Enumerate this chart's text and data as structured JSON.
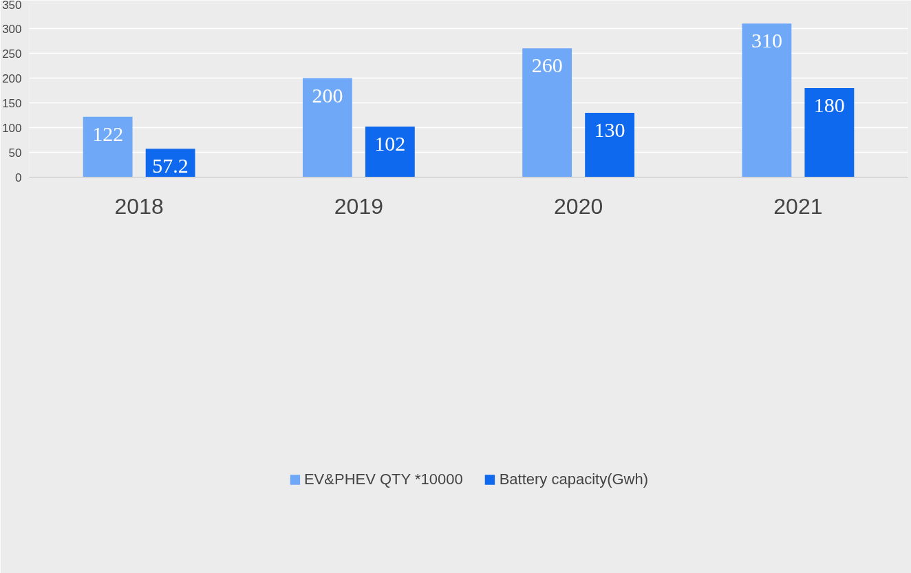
{
  "chart_data": {
    "type": "bar",
    "categories": [
      "2018",
      "2019",
      "2020",
      "2021"
    ],
    "series": [
      {
        "name": "EV&PHEV QTY *10000",
        "color": "#6fa8f7",
        "values": [
          122,
          200,
          260,
          310
        ]
      },
      {
        "name": "Battery capacity(Gwh)",
        "color": "#0f69ee",
        "values": [
          57.2,
          102,
          130,
          180
        ]
      }
    ],
    "ylim": [
      0,
      350
    ],
    "yticks": [
      0,
      50,
      100,
      150,
      200,
      250,
      300,
      350
    ],
    "grid": "y",
    "legend": "bottom",
    "data_labels": true
  }
}
